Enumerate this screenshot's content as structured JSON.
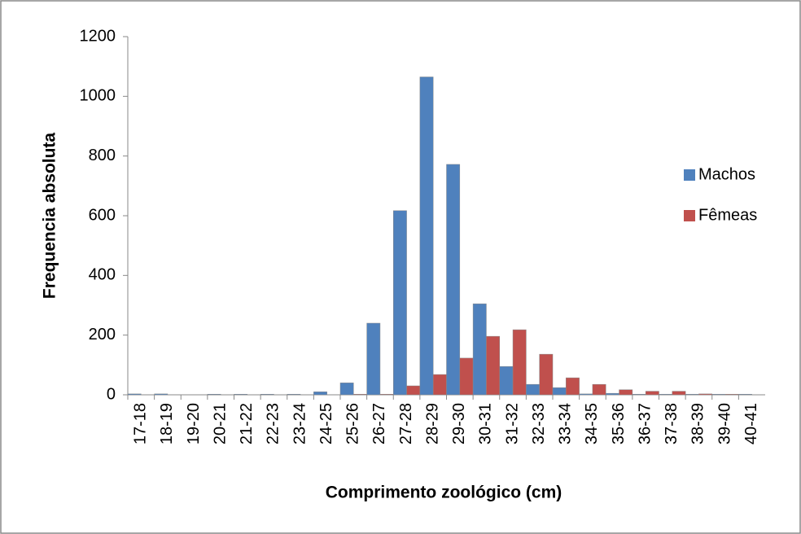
{
  "chart_data": {
    "type": "bar",
    "x_label": "Comprimento zoológico (cm)",
    "y_label": "Frequencia absoluta",
    "categories": [
      "17-18",
      "18-19",
      "19-20",
      "20-21",
      "21-22",
      "22-23",
      "23-24",
      "24-25",
      "25-26",
      "26-27",
      "27-28",
      "28-29",
      "29-30",
      "30-31",
      "31-32",
      "32-33",
      "33-34",
      "34-35",
      "35-36",
      "36-37",
      "37-38",
      "38-39",
      "39-40",
      "40-41"
    ],
    "series": [
      {
        "name": "Machos",
        "color": "#4f81bd",
        "values": [
          3,
          3,
          0,
          2,
          2,
          2,
          2,
          10,
          40,
          240,
          617,
          1065,
          772,
          305,
          95,
          35,
          24,
          3,
          5,
          2,
          2,
          2,
          2,
          2
        ]
      },
      {
        "name": "Fêmeas",
        "color": "#c0504d",
        "values": [
          0,
          0,
          0,
          0,
          0,
          0,
          0,
          0,
          2,
          2,
          30,
          68,
          123,
          196,
          218,
          136,
          57,
          35,
          17,
          12,
          12,
          3,
          2,
          0
        ]
      }
    ],
    "ylim": [
      0,
      1200
    ],
    "yticks": [
      0,
      200,
      400,
      600,
      800,
      1000,
      1200
    ],
    "grid": false,
    "legend": "right"
  }
}
